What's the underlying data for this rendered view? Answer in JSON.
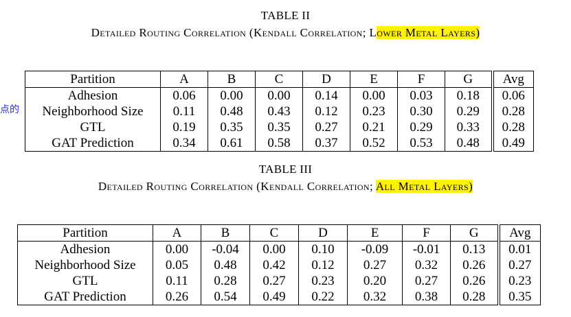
{
  "margin_note": "点的",
  "tables": [
    {
      "label": "TABLE II",
      "caption_plain": "Detailed Routing Correlation (Kendall Correlation; L",
      "caption_highlight": "ower Metal Layers)",
      "headers": [
        "Partition",
        "A",
        "B",
        "C",
        "D",
        "E",
        "F",
        "G",
        "Avg"
      ],
      "rows": [
        [
          "Adhesion",
          "0.06",
          "0.00",
          "0.00",
          "0.14",
          "0.00",
          "0.03",
          "0.18",
          "0.06"
        ],
        [
          "Neighborhood Size",
          "0.11",
          "0.48",
          "0.43",
          "0.12",
          "0.23",
          "0.30",
          "0.29",
          "0.28"
        ],
        [
          "GTL",
          "0.19",
          "0.35",
          "0.35",
          "0.27",
          "0.21",
          "0.29",
          "0.33",
          "0.28"
        ],
        [
          "GAT Prediction",
          "0.34",
          "0.61",
          "0.58",
          "0.37",
          "0.52",
          "0.53",
          "0.48",
          "0.49"
        ]
      ]
    },
    {
      "label": "TABLE III",
      "caption_plain": "Detailed Routing Correlation (Kendall Correlation; ",
      "caption_highlight": "All Metal Layers)",
      "headers": [
        "Partition",
        "A",
        "B",
        "C",
        "D",
        "E",
        "F",
        "G",
        "Avg"
      ],
      "rows": [
        [
          "Adhesion",
          "0.00",
          "-0.04",
          "0.00",
          "0.10",
          "-0.09",
          "-0.01",
          "0.13",
          "0.01"
        ],
        [
          "Neighborhood Size",
          "0.05",
          "0.48",
          "0.42",
          "0.12",
          "0.27",
          "0.32",
          "0.26",
          "0.27"
        ],
        [
          "GTL",
          "0.11",
          "0.28",
          "0.27",
          "0.23",
          "0.20",
          "0.27",
          "0.26",
          "0.23"
        ],
        [
          "GAT Prediction",
          "0.26",
          "0.54",
          "0.49",
          "0.22",
          "0.32",
          "0.38",
          "0.28",
          "0.35"
        ]
      ]
    }
  ]
}
